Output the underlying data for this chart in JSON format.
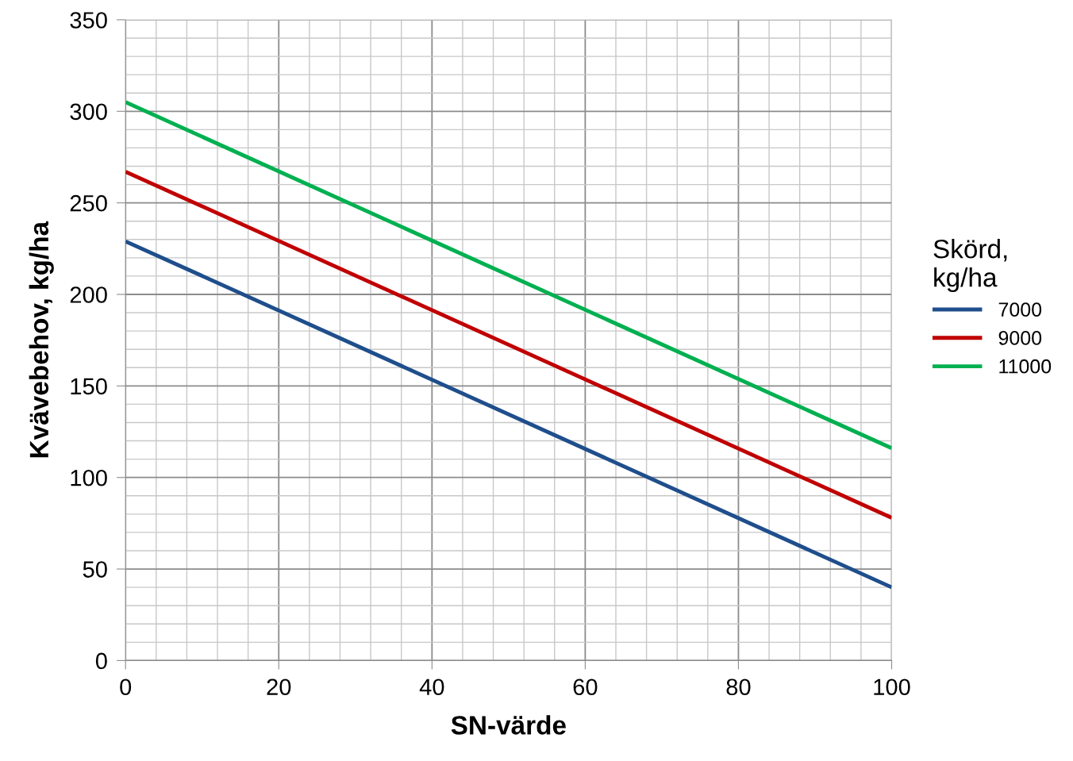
{
  "chart_data": {
    "type": "line",
    "xlabel": "SN-värde",
    "ylabel": "Kvävebehov, kg/ha",
    "legend_title": "Skörd,\nkg/ha",
    "legend": "right",
    "grid": true,
    "marker": "none",
    "line_style": "solid",
    "x": [
      0,
      100
    ],
    "xlim": [
      0,
      100
    ],
    "xticks": [
      0,
      20,
      40,
      60,
      80,
      100
    ],
    "ylim": [
      0,
      350
    ],
    "yticks": [
      0,
      50,
      100,
      150,
      200,
      250,
      300,
      350
    ],
    "series": [
      {
        "name": "7000",
        "color": "#1f4e8c",
        "values": [
          229,
          40
        ]
      },
      {
        "name": "9000",
        "color": "#c00000",
        "values": [
          267,
          78
        ]
      },
      {
        "name": "11000",
        "color": "#00b050",
        "values": [
          305,
          116
        ]
      }
    ]
  }
}
